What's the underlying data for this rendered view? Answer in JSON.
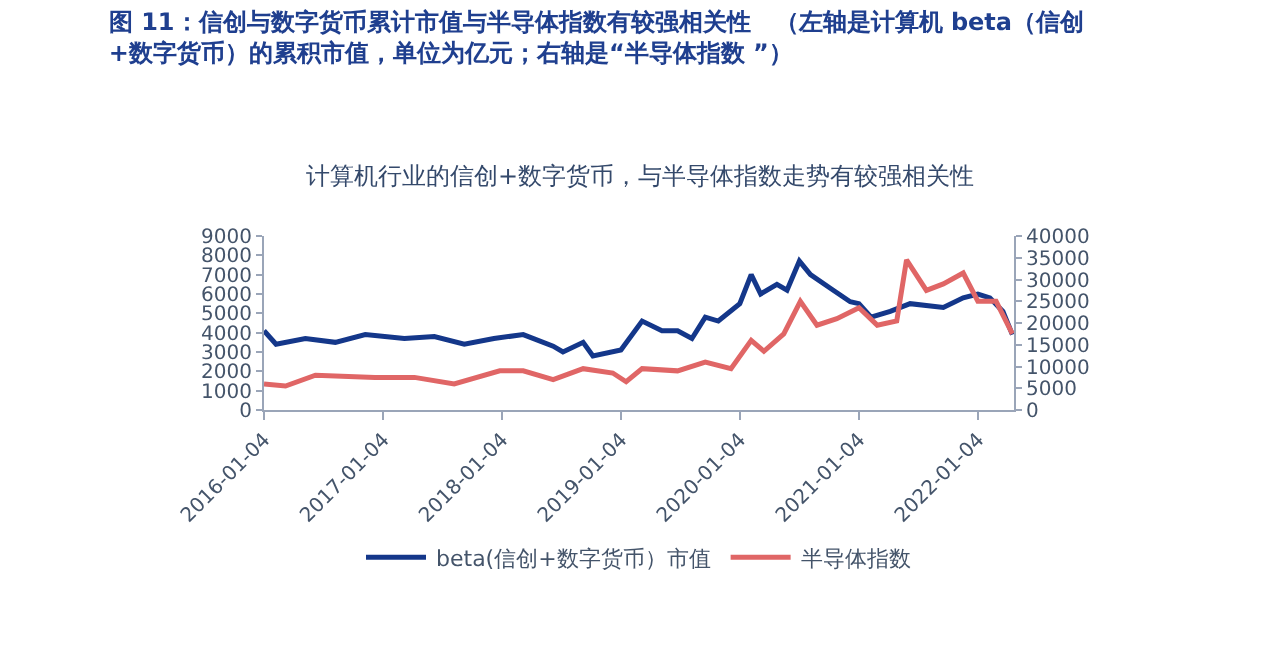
{
  "chart_data": {
    "type": "line",
    "title": "图 11：信创与数字货币累计市值与半导体指数有较强相关性　（左轴是计算机 beta（信创+数字货币）的累积市值，单位为亿元；右轴是“半导体指数 ”）",
    "subtitle": "计算机行业的信创+数字货币，与半导体指数走势有较强相关性",
    "xlim": [
      "2016-01-04",
      "2022-04-25"
    ],
    "xticks": [
      "2016-01-04",
      "2017-01-04",
      "2018-01-04",
      "2019-01-04",
      "2020-01-04",
      "2021-01-04",
      "2022-01-04"
    ],
    "ylim": [
      0,
      9000
    ],
    "yticks": [
      0,
      1000,
      2000,
      3000,
      4000,
      5000,
      6000,
      7000,
      8000,
      9000
    ],
    "y2lim": [
      0,
      40000
    ],
    "y2ticks": [
      0,
      5000,
      10000,
      15000,
      20000,
      25000,
      30000,
      35000,
      40000
    ],
    "legend": "bottom",
    "marker": "none",
    "line_style": "solid",
    "series": [
      {
        "name": "beta(信创+数字货币）市值",
        "color": "#14378a",
        "x": [
          "2016-01-04",
          "2016-02-10",
          "2016-05-10",
          "2016-08-10",
          "2016-11-10",
          "2017-03-10",
          "2017-06-10",
          "2017-09-10",
          "2017-12-10",
          "2018-03-10",
          "2018-06-10",
          "2018-07-10",
          "2018-09-10",
          "2018-10-10",
          "2019-01-04",
          "2019-03-10",
          "2019-05-10",
          "2019-06-27",
          "2019-08-10",
          "2019-09-20",
          "2019-10-30",
          "2020-01-04",
          "2020-02-08",
          "2020-03-08",
          "2020-04-27",
          "2020-05-28",
          "2020-07-05",
          "2020-08-08",
          "2020-10-08",
          "2020-12-08",
          "2021-01-04",
          "2021-02-10",
          "2021-04-10",
          "2021-06-10",
          "2021-09-20",
          "2021-11-20",
          "2022-01-04",
          "2022-02-10",
          "2022-03-22",
          "2022-04-20"
        ],
        "values": [
          4100,
          3400,
          3700,
          3500,
          3900,
          3700,
          3800,
          3400,
          3700,
          3900,
          3300,
          3000,
          3500,
          2800,
          3100,
          4600,
          4100,
          4100,
          3700,
          4800,
          4600,
          5500,
          7000,
          6000,
          6500,
          6200,
          7700,
          7000,
          6300,
          5600,
          5500,
          4800,
          5100,
          5500,
          5300,
          5800,
          6000,
          5800,
          5100,
          3900
        ]
      },
      {
        "name": "半导体指数",
        "color": "#e06666",
        "axis": "y2",
        "x": [
          "2016-01-04",
          "2016-03-10",
          "2016-06-10",
          "2016-12-10",
          "2017-04-10",
          "2017-08-10",
          "2017-12-28",
          "2018-03-10",
          "2018-06-10",
          "2018-09-10",
          "2018-12-10",
          "2019-01-20",
          "2019-03-10",
          "2019-06-27",
          "2019-09-20",
          "2019-12-08",
          "2020-02-08",
          "2020-03-18",
          "2020-05-18",
          "2020-07-08",
          "2020-08-28",
          "2020-10-28",
          "2021-01-04",
          "2021-03-01",
          "2021-04-30",
          "2021-05-30",
          "2021-07-30",
          "2021-09-20",
          "2021-11-20",
          "2022-01-04",
          "2022-03-01",
          "2022-04-20"
        ],
        "values": [
          6000,
          5500,
          8000,
          7500,
          7500,
          6000,
          9000,
          9000,
          7000,
          9500,
          8500,
          6500,
          9500,
          9000,
          11000,
          9500,
          16000,
          13500,
          17500,
          25000,
          19500,
          21000,
          23500,
          19500,
          20500,
          34500,
          27500,
          29000,
          31500,
          25000,
          25000,
          17500
        ]
      }
    ]
  }
}
